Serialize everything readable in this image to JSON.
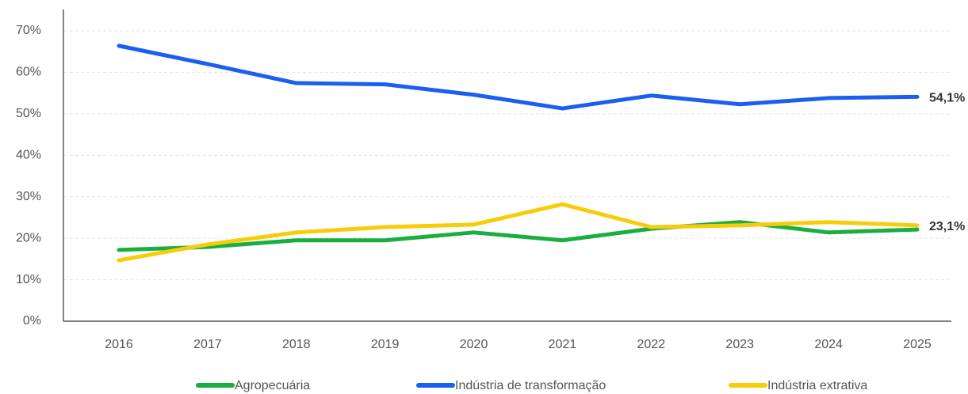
{
  "chart_data": {
    "type": "line",
    "categories": [
      "2016",
      "2017",
      "2018",
      "2019",
      "2020",
      "2021",
      "2022",
      "2023",
      "2024",
      "2025"
    ],
    "series": [
      {
        "name": "Agropecuária",
        "color": "#1aae3f",
        "values": [
          17.2,
          17.9,
          19.5,
          19.5,
          21.4,
          19.5,
          22.3,
          23.9,
          21.4,
          22.1
        ]
      },
      {
        "name": "Indústria de transformação",
        "color": "#1a5ff0",
        "values": [
          66.4,
          62.0,
          57.4,
          57.1,
          54.6,
          51.3,
          54.4,
          52.3,
          53.8,
          54.1
        ],
        "end_label": "54,1%"
      },
      {
        "name": "Indústria extrativa",
        "color": "#f7cd0a",
        "values": [
          14.7,
          18.5,
          21.4,
          22.7,
          23.3,
          28.2,
          22.7,
          23.1,
          23.9,
          23.1
        ],
        "end_label": "23,1%"
      }
    ],
    "ylim": [
      0,
      70
    ],
    "yticks": [
      {
        "value": 0,
        "label": "0%"
      },
      {
        "value": 10,
        "label": "10%"
      },
      {
        "value": 20,
        "label": "20%"
      },
      {
        "value": 30,
        "label": "30%"
      },
      {
        "value": 40,
        "label": "40%"
      },
      {
        "value": 50,
        "label": "50%"
      },
      {
        "value": 60,
        "label": "60%"
      },
      {
        "value": 70,
        "label": "70%"
      }
    ],
    "grid": true,
    "legend": "bottom"
  }
}
